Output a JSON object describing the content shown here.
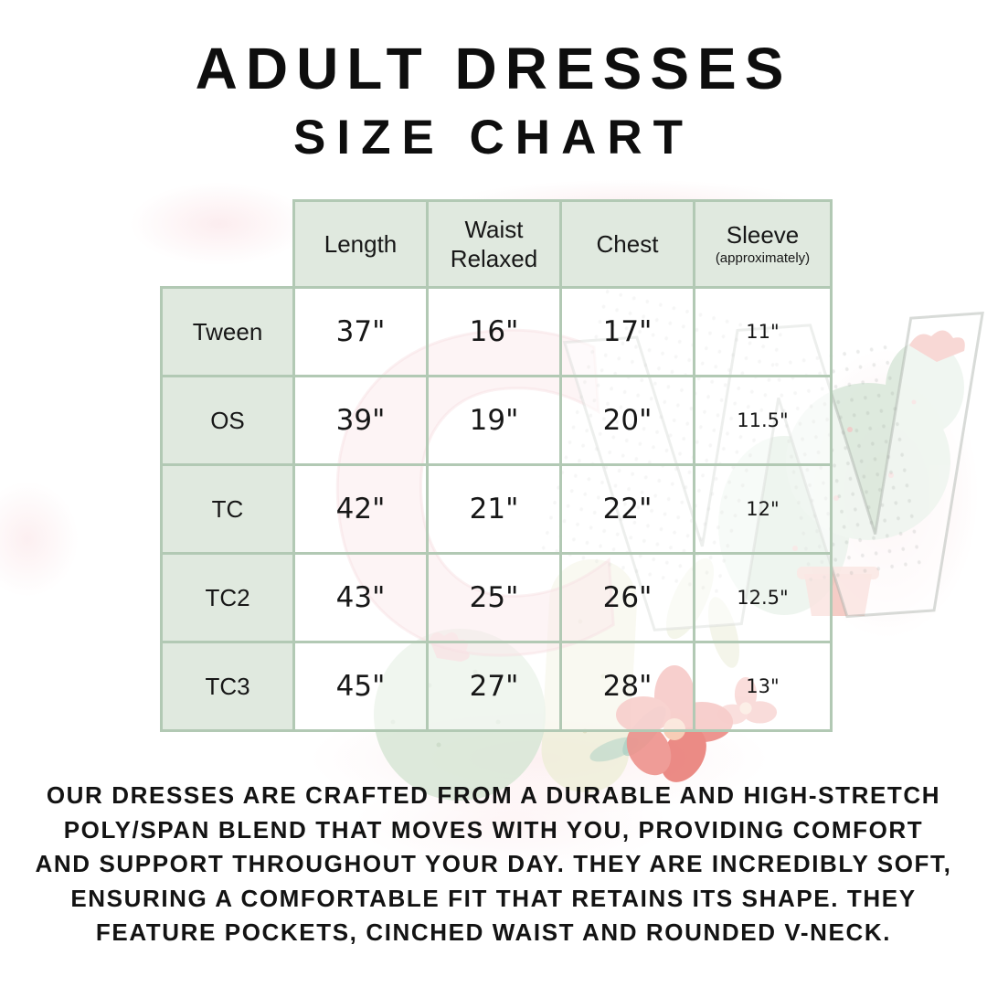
{
  "title": {
    "line1": "ADULT DRESSES",
    "line2": "SIZE CHART"
  },
  "chart_data": {
    "type": "table",
    "title": "ADULT DRESSES SIZE CHART",
    "columns": [
      "",
      "Length",
      "Waist Relaxed",
      "Chest",
      "Sleeve"
    ],
    "sleeve_note": "(approximately)",
    "rows": [
      [
        "Tween",
        "37\"",
        "16\"",
        "17\"",
        "11\""
      ],
      [
        "OS",
        "39\"",
        "19\"",
        "20\"",
        "11.5\""
      ],
      [
        "TC",
        "42\"",
        "21\"",
        "22\"",
        "12\""
      ],
      [
        "TC2",
        "43\"",
        "25\"",
        "26\"",
        "12.5\""
      ],
      [
        "TC3",
        "45\"",
        "27\"",
        "28\"",
        "13\""
      ]
    ]
  },
  "description": {
    "lines": [
      "OUR DRESSES ARE CRAFTED FROM A DURABLE AND HIGH-STRETCH",
      "POLY/SPAN BLEND THAT MOVES WITH YOU, PROVIDING COMFORT",
      "AND SUPPORT THROUGHOUT YOUR DAY. THEY ARE INCREDIBLY SOFT,",
      "ENSURING A COMFORTABLE FIT THAT RETAINS ITS SHAPE. THEY",
      "FEATURE POCKETS, CINCHED WAIST AND ROUNDED V-NECK."
    ]
  },
  "watermark": {
    "letter1": "C",
    "letter2": "W"
  },
  "colors": {
    "table_border": "#b2c9b4",
    "table_header_fill": "#e0e9df",
    "text": "#131313",
    "watermark_pink": "#f6cdd3",
    "decor_green": "#dbe9dc",
    "decor_pink": "#f2bdb5",
    "flower_red": "#ec8a84"
  }
}
